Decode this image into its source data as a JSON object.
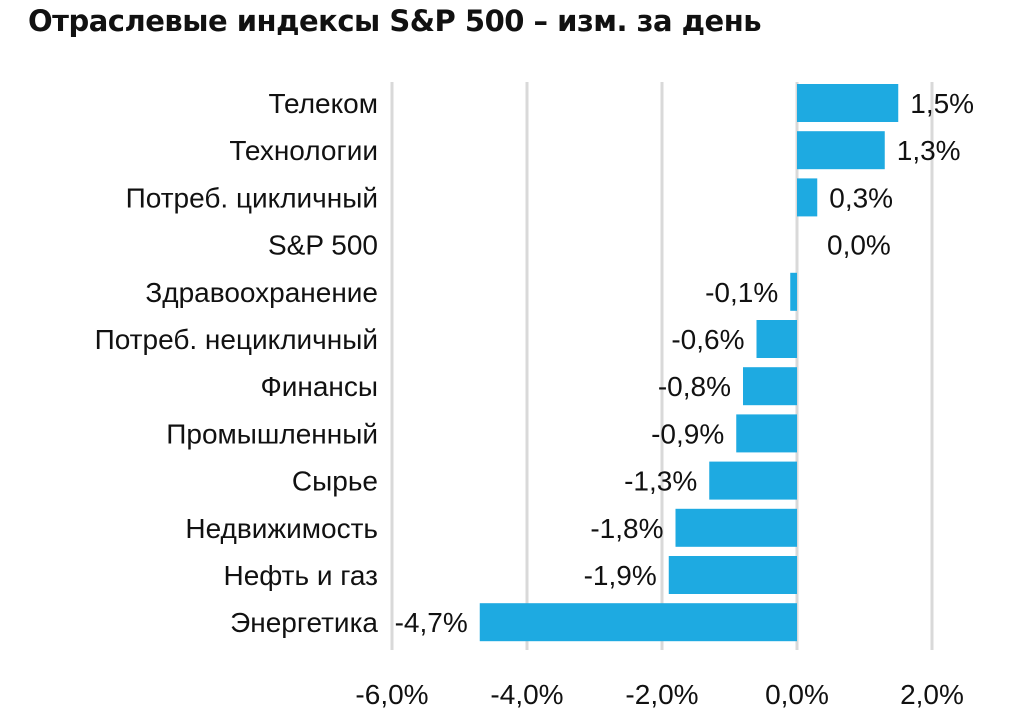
{
  "chart_data": {
    "type": "bar",
    "orientation": "horizontal",
    "title": "Отраслевые индексы S&P 500 – изм. за день",
    "categories": [
      "Телеком",
      "Технологии",
      "Потреб. цикличный",
      "S&P 500",
      "Здравоохранение",
      "Потреб. нецикличный",
      "Финансы",
      "Промышленный",
      "Сырье",
      "Недвижимость",
      "Нефть и газ",
      "Энергетика"
    ],
    "values": [
      1.5,
      1.3,
      0.3,
      0.0,
      -0.1,
      -0.6,
      -0.8,
      -0.9,
      -1.3,
      -1.8,
      -1.9,
      -4.7
    ],
    "value_labels": [
      "1,5%",
      "1,3%",
      "0,3%",
      "0,0%",
      "-0,1%",
      "-0,6%",
      "-0,8%",
      "-0,9%",
      "-1,3%",
      "-1,8%",
      "-1,9%",
      "-4,7%"
    ],
    "xlim": [
      -6,
      2
    ],
    "xticks": [
      -6,
      -4,
      -2,
      0,
      2
    ],
    "xtick_labels": [
      "-6,0%",
      "-4,0%",
      "-2,0%",
      "0,0%",
      "2,0%"
    ],
    "grid": "vertical",
    "bar_color": "#1EAAE1",
    "grid_color": "#D9D9D9"
  }
}
